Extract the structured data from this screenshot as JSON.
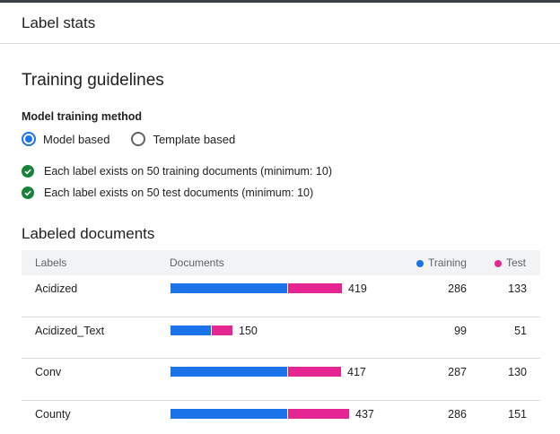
{
  "header": {
    "title": "Label stats"
  },
  "guidelines": {
    "title": "Training guidelines",
    "method_label": "Model training method",
    "options": [
      {
        "label": "Model based",
        "checked": true
      },
      {
        "label": "Template based",
        "checked": false
      }
    ],
    "checks": [
      "Each label exists on 50 training documents (minimum: 10)",
      "Each label exists on 50 test documents (minimum: 10)"
    ]
  },
  "labeled": {
    "title": "Labeled documents",
    "columns": {
      "labels": "Labels",
      "documents": "Documents",
      "training": "Training",
      "test": "Test"
    },
    "colors": {
      "training": "#1a73e8",
      "test": "#e52592"
    },
    "rows": [
      {
        "label": "Acidized",
        "total": "419",
        "training": "286",
        "test": "133"
      },
      {
        "label": "Acidized_Text",
        "total": "150",
        "training": "99",
        "test": "51"
      },
      {
        "label": "Conv",
        "total": "417",
        "training": "287",
        "test": "130"
      },
      {
        "label": "County",
        "total": "437",
        "training": "286",
        "test": "151"
      }
    ]
  }
}
